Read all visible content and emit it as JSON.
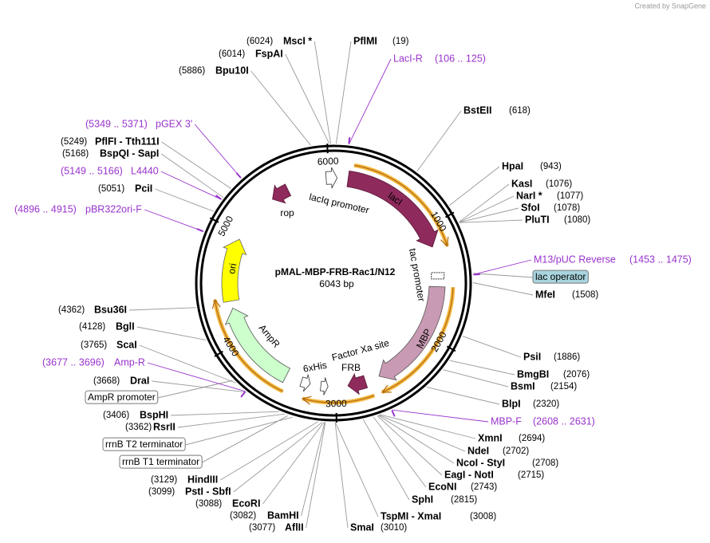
{
  "credit": "Created by SnapGene",
  "name": "pMAL-MBP-FRB-Rac1/N12",
  "size": "6043 bp",
  "ruler": [
    "1000",
    "2000",
    "3000",
    "4000",
    "5000",
    "6000"
  ],
  "features": [
    "lacIq promoter",
    "lacI",
    "tac promoter",
    "MBP",
    "Factor Xa site",
    "FRB",
    "6xHis",
    "AmpR",
    "ori",
    "rop"
  ],
  "boxed_features": [
    "lac operator",
    "AmpR promoter",
    "rrnB T2 terminator",
    "rrnB T1 terminator"
  ],
  "enzymes": [
    {
      "name": "MscI *",
      "site": "(6024)"
    },
    {
      "name": "FspAI",
      "site": "(6014)"
    },
    {
      "name": "Bpu10I",
      "site": "(5886)"
    },
    {
      "name": "PflFI - Tth111I",
      "site": "(5249)"
    },
    {
      "name": "BspQI - SapI",
      "site": "(5168)"
    },
    {
      "name": "PciI",
      "site": "(5051)"
    },
    {
      "name": "Bsu36I",
      "site": "(4362)"
    },
    {
      "name": "BglI",
      "site": "(4128)"
    },
    {
      "name": "ScaI",
      "site": "(3765)"
    },
    {
      "name": "DraI",
      "site": "(3668)"
    },
    {
      "name": "BspHI",
      "site": "(3406)"
    },
    {
      "name": "RsrII",
      "site": "(3362)"
    },
    {
      "name": "HindIII",
      "site": "(3129)"
    },
    {
      "name": "PstI - SbfI",
      "site": "(3099)"
    },
    {
      "name": "EcoRI",
      "site": "(3088)"
    },
    {
      "name": "BamHI",
      "site": "(3082)"
    },
    {
      "name": "AflII",
      "site": "(3077)"
    },
    {
      "name": "PflMI",
      "site": "(19)"
    },
    {
      "name": "BstEII",
      "site": "(618)"
    },
    {
      "name": "HpaI",
      "site": "(943)"
    },
    {
      "name": "KasI",
      "site": "(1076)"
    },
    {
      "name": "NarI *",
      "site": "(1077)"
    },
    {
      "name": "SfoI",
      "site": "(1078)"
    },
    {
      "name": "PluTI",
      "site": "(1080)"
    },
    {
      "name": "MfeI",
      "site": "(1508)"
    },
    {
      "name": "PsiI",
      "site": "(1886)"
    },
    {
      "name": "BmgBI",
      "site": "(2076)"
    },
    {
      "name": "BsmI",
      "site": "(2154)"
    },
    {
      "name": "BlpI",
      "site": "(2320)"
    },
    {
      "name": "XmnI",
      "site": "(2694)"
    },
    {
      "name": "NdeI",
      "site": "(2702)"
    },
    {
      "name": "NcoI - StyI",
      "site": "(2708)"
    },
    {
      "name": "EagI - NotI",
      "site": "(2715)"
    },
    {
      "name": "EcoNI",
      "site": "(2743)"
    },
    {
      "name": "SphI",
      "site": "(2815)"
    },
    {
      "name": "TspMI - XmaI",
      "site": "(3008)"
    },
    {
      "name": "SmaI",
      "site": "(3010)"
    }
  ],
  "primers": [
    {
      "name": "LacI-R",
      "site": "(106 .. 125)"
    },
    {
      "name": "M13/pUC Reverse",
      "site": "(1453 .. 1475)"
    },
    {
      "name": "MBP-F",
      "site": "(2608 .. 2631)"
    },
    {
      "name": "Amp-R",
      "site": "(3677 .. 3696)"
    },
    {
      "name": "pBR322ori-F",
      "site": "(4896 .. 4915)"
    },
    {
      "name": "L4440",
      "site": "(5149 .. 5166)"
    },
    {
      "name": "pGEX 3'",
      "site": "(5349 .. 5371)"
    }
  ]
}
